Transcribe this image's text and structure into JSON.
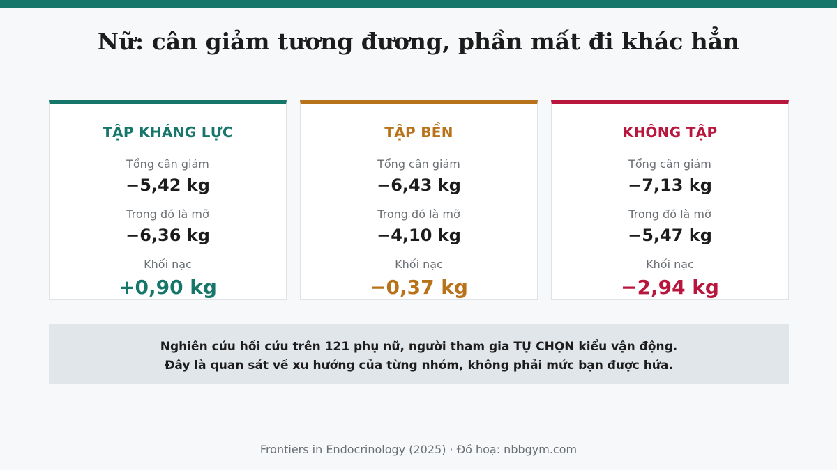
{
  "title": "Nữ: cân giảm tương đương, phần mất đi khác hẳn",
  "colors": {
    "accent_top_bar": "#16766a",
    "resistance": "#16766a",
    "endurance": "#b8731a",
    "none": "#b8163c"
  },
  "cards": [
    {
      "title": "TẬP KHÁNG LỰC",
      "total_label": "Tổng cân giảm",
      "total_value": "−5,42 kg",
      "fat_label": "Trong đó là mỡ",
      "fat_value": "−6,36 kg",
      "lean_label": "Khối nạc",
      "lean_value": "+0,90 kg"
    },
    {
      "title": "TẬP BỀN",
      "total_label": "Tổng cân giảm",
      "total_value": "−6,43 kg",
      "fat_label": "Trong đó là mỡ",
      "fat_value": "−4,10 kg",
      "lean_label": "Khối nạc",
      "lean_value": "−0,37 kg"
    },
    {
      "title": "KHÔNG TẬP",
      "total_label": "Tổng cân giảm",
      "total_value": "−7,13 kg",
      "fat_label": "Trong đó là mỡ",
      "fat_value": "−5,47 kg",
      "lean_label": "Khối nạc",
      "lean_value": "−2,94 kg"
    }
  ],
  "note": {
    "line1": "Nghiên cứu hồi cứu trên 121 phụ nữ, người tham gia TỰ CHỌN kiểu vận động.",
    "line2": "Đây là quan sát về xu hướng của từng nhóm, không phải mức bạn được hứa."
  },
  "footer": "Frontiers in Endocrinology (2025) · Đồ hoạ: nbbgym.com"
}
